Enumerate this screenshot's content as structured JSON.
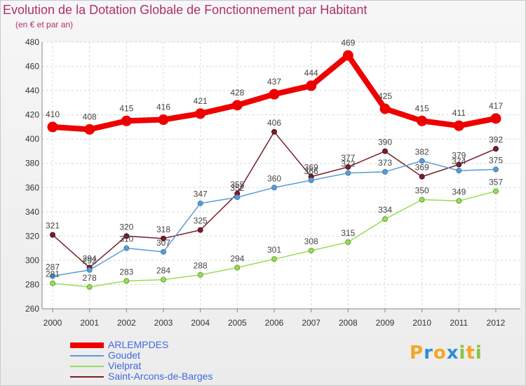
{
  "chart_data": {
    "type": "line",
    "title": "Evolution de la Dotation Globale de Fonctionnement par Habitant",
    "subtitle": "(en € et par an)",
    "x": [
      "2000",
      "2001",
      "2002",
      "2003",
      "2004",
      "2005",
      "2006",
      "2007",
      "2008",
      "2009",
      "2010",
      "2011",
      "2012"
    ],
    "ylim": [
      260,
      480
    ],
    "yticks": [
      "260",
      "280",
      "300",
      "320",
      "340",
      "360",
      "380",
      "400",
      "420",
      "440",
      "460",
      "480"
    ],
    "grid": true,
    "series": [
      {
        "name": "ARLEMPDES",
        "color": "#ee0000",
        "values": [
          410,
          408,
          415,
          416,
          421,
          428,
          437,
          444,
          469,
          425,
          415,
          411,
          417
        ]
      },
      {
        "name": "Goudet",
        "color": "#5b9bd5",
        "values": [
          287,
          292,
          310,
          307,
          347,
          352,
          360,
          366,
          372,
          373,
          382,
          374,
          375
        ]
      },
      {
        "name": "Vielprat",
        "color": "#99dd55",
        "values": [
          281,
          278,
          283,
          284,
          288,
          294,
          301,
          308,
          315,
          334,
          350,
          349,
          357
        ]
      },
      {
        "name": "Saint-Arcons-de-Barges",
        "color": "#7a1f2a",
        "values": [
          321,
          294,
          320,
          318,
          325,
          355,
          406,
          369,
          377,
          390,
          369,
          379,
          392
        ]
      }
    ]
  },
  "logo": {
    "letters": [
      "P",
      "r",
      "o",
      "x",
      "i",
      "t",
      "i"
    ],
    "colors": [
      "#f5a623",
      "#2e8fd6",
      "#f5a623",
      "#2e8fd6",
      "#88c540",
      "#f5a623",
      "#88c540"
    ]
  }
}
